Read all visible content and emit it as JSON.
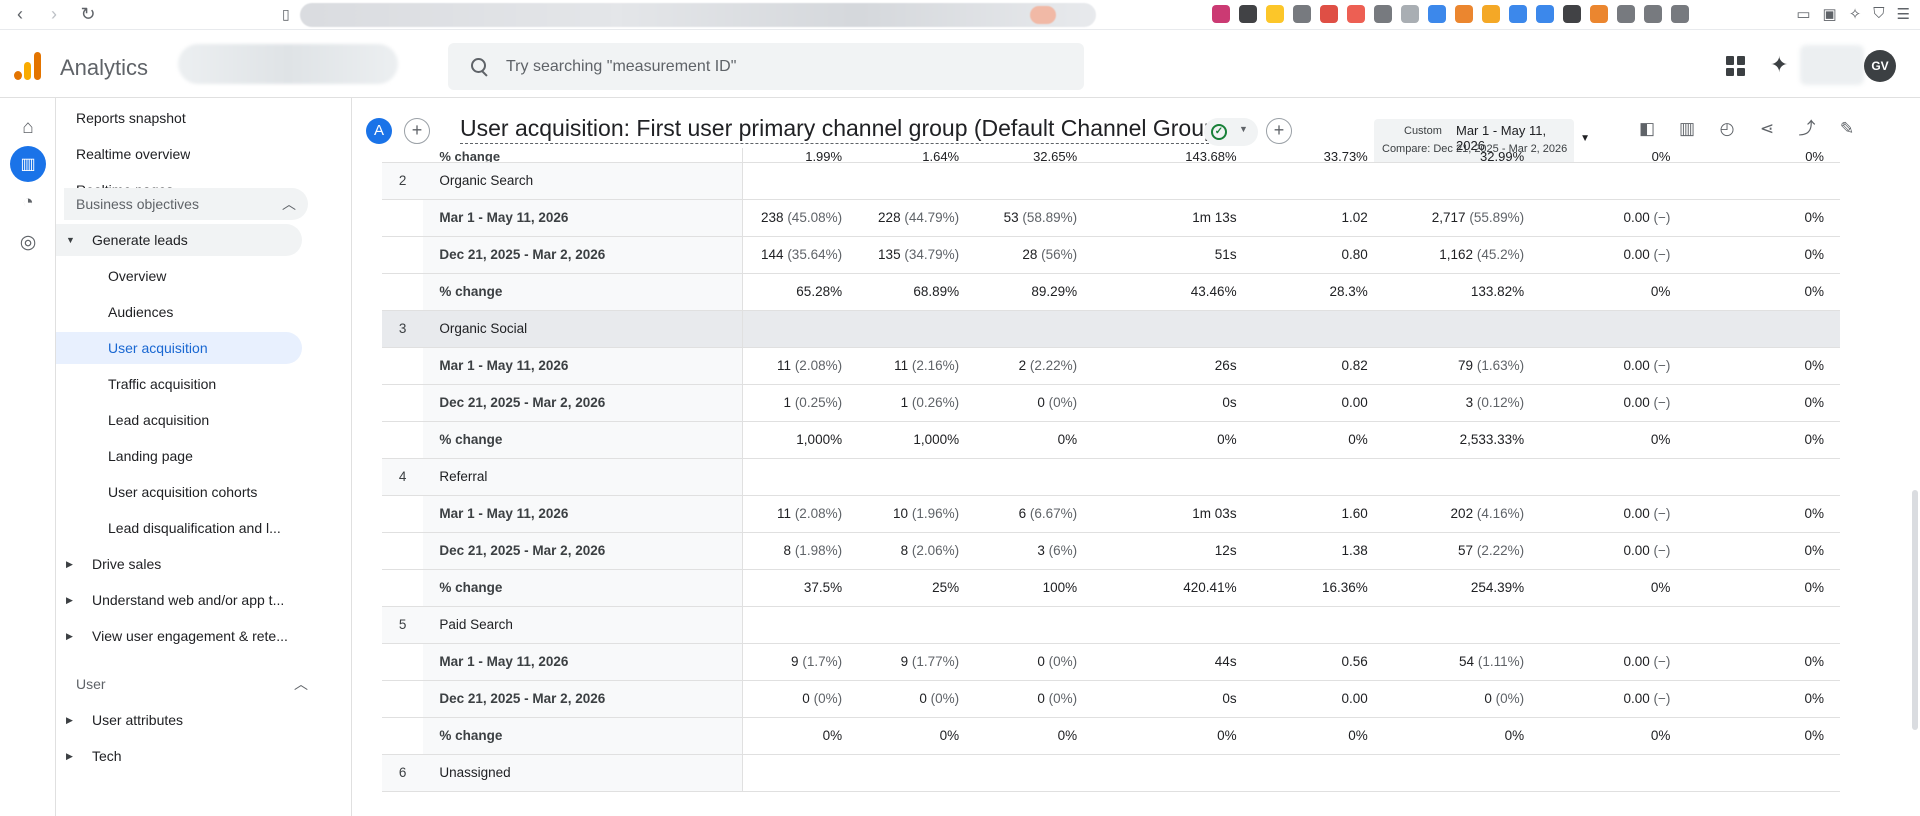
{
  "browser": {
    "extension_colors": [
      "#c2185b",
      "#202124",
      "#fbbc04",
      "#5f6368",
      "#d93025",
      "#ea4335",
      "#5f6368",
      "#9aa0a6",
      "#1a73e8",
      "#e8710a",
      "#f29900",
      "#1a73e8",
      "#1a73e8",
      "#202124",
      "#e8710a",
      "#5f6368",
      "#5f6368",
      "#5f6368"
    ],
    "badge": "2"
  },
  "app": {
    "brand": "Analytics",
    "search_placeholder": "Try searching \"measurement ID\"",
    "avatar_initials": "GV"
  },
  "sidebar": {
    "top_items": [
      "Reports snapshot",
      "Realtime overview",
      "Realtime pages"
    ],
    "section1": "Business objectives",
    "group_open": "Generate leads",
    "sub_items": [
      "Overview",
      "Audiences",
      "User acquisition",
      "Traffic acquisition",
      "Lead acquisition",
      "Landing page",
      "User acquisition cohorts",
      "Lead disqualification and l..."
    ],
    "active_sub": "User acquisition",
    "groups_closed": [
      "Drive sales",
      "Understand web and/or app t...",
      "View user engagement & rete..."
    ],
    "section2": "User",
    "user_groups": [
      "User attributes",
      "Tech"
    ]
  },
  "report": {
    "comparison_letter": "A",
    "title": "User acquisition: First user primary channel group (Default Channel Group)",
    "date_label": "Custom",
    "date_range": "Mar 1 - May 11, 2026",
    "compare_range": "Compare: Dec 21, 2025 - Mar 2, 2026"
  },
  "table": {
    "partial_top": [
      "% change",
      "1.99%",
      "1.64%",
      "32.65%",
      "143.68%",
      "33.73%",
      "32.99%",
      "0%",
      "0%"
    ],
    "groups": [
      {
        "num": "2",
        "name": "Organic Search",
        "highlight": false,
        "rows": [
          {
            "label": "Mar 1 - May 11, 2026",
            "cells": [
              [
                "238",
                "(45.08%)"
              ],
              [
                "228",
                "(44.79%)"
              ],
              [
                "53",
                "(58.89%)"
              ],
              [
                "1m 13s",
                ""
              ],
              [
                "1.02",
                ""
              ],
              [
                "2,717",
                "(55.89%)"
              ],
              [
                "0.00",
                "(−)"
              ],
              [
                "0%",
                ""
              ]
            ]
          },
          {
            "label": "Dec 21, 2025 - Mar 2, 2026",
            "cells": [
              [
                "144",
                "(35.64%)"
              ],
              [
                "135",
                "(34.79%)"
              ],
              [
                "28",
                "(56%)"
              ],
              [
                "51s",
                ""
              ],
              [
                "0.80",
                ""
              ],
              [
                "1,162",
                "(45.2%)"
              ],
              [
                "0.00",
                "(−)"
              ],
              [
                "0%",
                ""
              ]
            ]
          },
          {
            "label": "% change",
            "cells": [
              [
                "65.28%",
                ""
              ],
              [
                "68.89%",
                ""
              ],
              [
                "89.29%",
                ""
              ],
              [
                "43.46%",
                ""
              ],
              [
                "28.3%",
                ""
              ],
              [
                "133.82%",
                ""
              ],
              [
                "0%",
                ""
              ],
              [
                "0%",
                ""
              ]
            ]
          }
        ]
      },
      {
        "num": "3",
        "name": "Organic Social",
        "highlight": true,
        "rows": [
          {
            "label": "Mar 1 - May 11, 2026",
            "cells": [
              [
                "11",
                "(2.08%)"
              ],
              [
                "11",
                "(2.16%)"
              ],
              [
                "2",
                "(2.22%)"
              ],
              [
                "26s",
                ""
              ],
              [
                "0.82",
                ""
              ],
              [
                "79",
                "(1.63%)"
              ],
              [
                "0.00",
                "(−)"
              ],
              [
                "0%",
                ""
              ]
            ]
          },
          {
            "label": "Dec 21, 2025 - Mar 2, 2026",
            "cells": [
              [
                "1",
                "(0.25%)"
              ],
              [
                "1",
                "(0.26%)"
              ],
              [
                "0",
                "(0%)"
              ],
              [
                "0s",
                ""
              ],
              [
                "0.00",
                ""
              ],
              [
                "3",
                "(0.12%)"
              ],
              [
                "0.00",
                "(−)"
              ],
              [
                "0%",
                ""
              ]
            ]
          },
          {
            "label": "% change",
            "cells": [
              [
                "1,000%",
                ""
              ],
              [
                "1,000%",
                ""
              ],
              [
                "0%",
                ""
              ],
              [
                "0%",
                ""
              ],
              [
                "0%",
                ""
              ],
              [
                "2,533.33%",
                ""
              ],
              [
                "0%",
                ""
              ],
              [
                "0%",
                ""
              ]
            ]
          }
        ]
      },
      {
        "num": "4",
        "name": "Referral",
        "highlight": false,
        "rows": [
          {
            "label": "Mar 1 - May 11, 2026",
            "cells": [
              [
                "11",
                "(2.08%)"
              ],
              [
                "10",
                "(1.96%)"
              ],
              [
                "6",
                "(6.67%)"
              ],
              [
                "1m 03s",
                ""
              ],
              [
                "1.60",
                ""
              ],
              [
                "202",
                "(4.16%)"
              ],
              [
                "0.00",
                "(−)"
              ],
              [
                "0%",
                ""
              ]
            ]
          },
          {
            "label": "Dec 21, 2025 - Mar 2, 2026",
            "cells": [
              [
                "8",
                "(1.98%)"
              ],
              [
                "8",
                "(2.06%)"
              ],
              [
                "3",
                "(6%)"
              ],
              [
                "12s",
                ""
              ],
              [
                "1.38",
                ""
              ],
              [
                "57",
                "(2.22%)"
              ],
              [
                "0.00",
                "(−)"
              ],
              [
                "0%",
                ""
              ]
            ]
          },
          {
            "label": "% change",
            "cells": [
              [
                "37.5%",
                ""
              ],
              [
                "25%",
                ""
              ],
              [
                "100%",
                ""
              ],
              [
                "420.41%",
                ""
              ],
              [
                "16.36%",
                ""
              ],
              [
                "254.39%",
                ""
              ],
              [
                "0%",
                ""
              ],
              [
                "0%",
                ""
              ]
            ]
          }
        ]
      },
      {
        "num": "5",
        "name": "Paid Search",
        "highlight": false,
        "rows": [
          {
            "label": "Mar 1 - May 11, 2026",
            "cells": [
              [
                "9",
                "(1.7%)"
              ],
              [
                "9",
                "(1.77%)"
              ],
              [
                "0",
                "(0%)"
              ],
              [
                "44s",
                ""
              ],
              [
                "0.56",
                ""
              ],
              [
                "54",
                "(1.11%)"
              ],
              [
                "0.00",
                "(−)"
              ],
              [
                "0%",
                ""
              ]
            ]
          },
          {
            "label": "Dec 21, 2025 - Mar 2, 2026",
            "cells": [
              [
                "0",
                "(0%)"
              ],
              [
                "0",
                "(0%)"
              ],
              [
                "0",
                "(0%)"
              ],
              [
                "0s",
                ""
              ],
              [
                "0.00",
                ""
              ],
              [
                "0",
                "(0%)"
              ],
              [
                "0.00",
                "(−)"
              ],
              [
                "0%",
                ""
              ]
            ]
          },
          {
            "label": "% change",
            "cells": [
              [
                "0%",
                ""
              ],
              [
                "0%",
                ""
              ],
              [
                "0%",
                ""
              ],
              [
                "0%",
                ""
              ],
              [
                "0%",
                ""
              ],
              [
                "0%",
                ""
              ],
              [
                "0%",
                ""
              ],
              [
                "0%",
                ""
              ]
            ]
          }
        ]
      },
      {
        "num": "6",
        "name": "Unassigned",
        "highlight": false,
        "rows": []
      }
    ]
  }
}
